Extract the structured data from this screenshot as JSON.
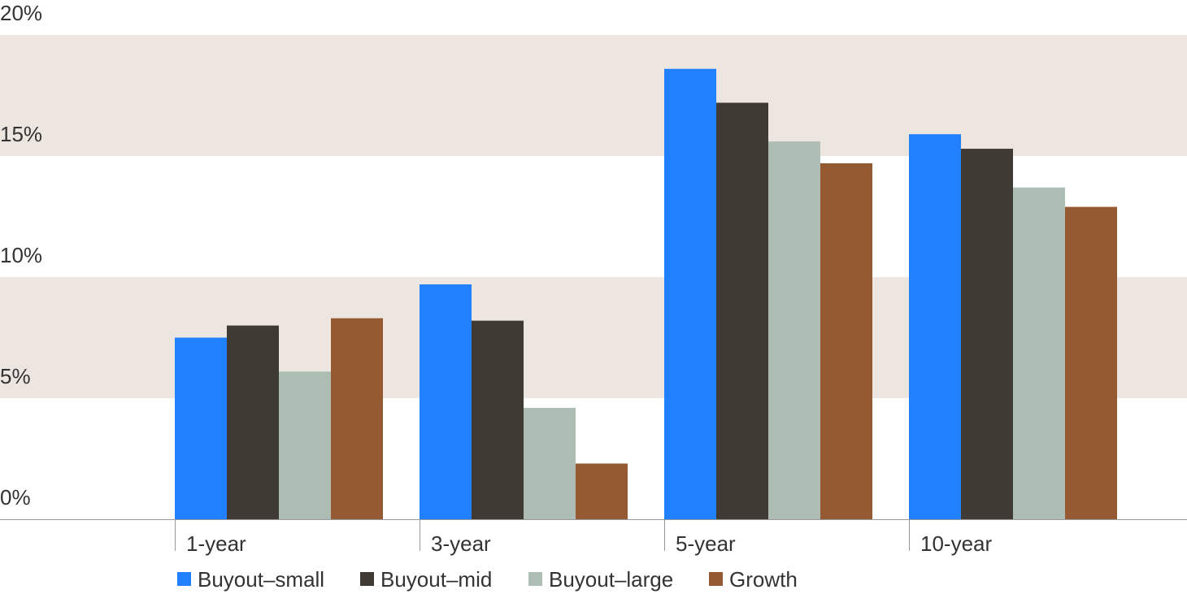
{
  "chart_data": {
    "type": "bar",
    "title": "",
    "xlabel": "",
    "ylabel": "",
    "ylim": [
      0,
      20
    ],
    "yticks": [
      0,
      5,
      10,
      15,
      20
    ],
    "ytick_labels": [
      "0%",
      "5%",
      "10%",
      "15%",
      "20%"
    ],
    "grid": "alternating horizontal bands",
    "band_color": "#ede5e0",
    "legend_position": "bottom-left",
    "categories": [
      "1-year",
      "3-year",
      "5-year",
      "10-year"
    ],
    "series": [
      {
        "name": "Buyout–small",
        "color": "#2080ff",
        "values": [
          7.5,
          9.7,
          18.6,
          15.9
        ]
      },
      {
        "name": "Buyout–mid",
        "color": "#403a34",
        "values": [
          8.0,
          8.2,
          17.2,
          15.3
        ]
      },
      {
        "name": "Buyout–large",
        "color": "#aebdb4",
        "values": [
          6.1,
          4.6,
          15.6,
          13.7
        ]
      },
      {
        "name": "Growth",
        "color": "#955a32",
        "values": [
          8.3,
          2.3,
          14.7,
          12.9
        ]
      }
    ]
  }
}
